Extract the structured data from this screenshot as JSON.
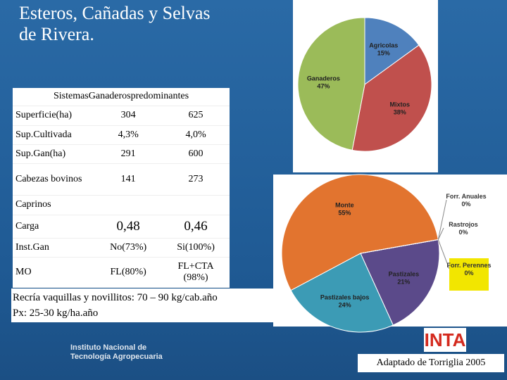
{
  "header": {
    "title": "Esteros, Cañadas y Selvas de Rivera."
  },
  "table": {
    "caption": "SistemasGanaderospredominantes",
    "rows": [
      [
        "Superficie(ha)",
        "304",
        "625"
      ],
      [
        "Sup.Cultivada",
        "4,3%",
        "4,0%"
      ],
      [
        "Sup.Gan(ha)",
        "291",
        "600"
      ],
      [
        "Cabezas bovinos",
        "141",
        "273"
      ],
      [
        "Caprinos"
      ],
      [
        "Carga",
        "0,48",
        "0,46"
      ],
      [
        "Inst.Gan",
        "No(73%)",
        "Si(100%)"
      ],
      [
        "MO",
        "FL(80%)",
        "FL+CTA (98%)"
      ]
    ]
  },
  "notes": [
    "Recría vaquillas y novillitos: 70 – 90 kg/cab.año",
    "Px: 25-30 kg/ha.año"
  ],
  "charts": [
    {
      "type": "pie",
      "labels": [
        "Agricolas",
        "Mixtos",
        "Ganaderos"
      ],
      "values": [
        15,
        38,
        47
      ],
      "value_labels": [
        "15%",
        "38%",
        "47%"
      ],
      "colors": [
        "#4f81bd",
        "#c0504d",
        "#9bbb59"
      ]
    },
    {
      "type": "pie",
      "labels": [
        "Pastizales",
        "Pastizales bajos",
        "Monte",
        "Forr. Anuales",
        "Rastrojos",
        "Forr. Perennes"
      ],
      "values": [
        21,
        24,
        55,
        0,
        0,
        0
      ],
      "value_labels": [
        "21%",
        "24%",
        "55%",
        "0%",
        "0%",
        "0%"
      ],
      "colors": [
        "#5b4a8a",
        "#3c9bb5",
        "#e2742f",
        "#9bbb59",
        "#c0504d",
        "#f2e600"
      ]
    }
  ],
  "footer": {
    "institute": [
      "Instituto Nacional de",
      "Tecnología Agropecuaria"
    ],
    "logo": "INTA",
    "credit": "Adaptado de Torriglia 2005"
  }
}
